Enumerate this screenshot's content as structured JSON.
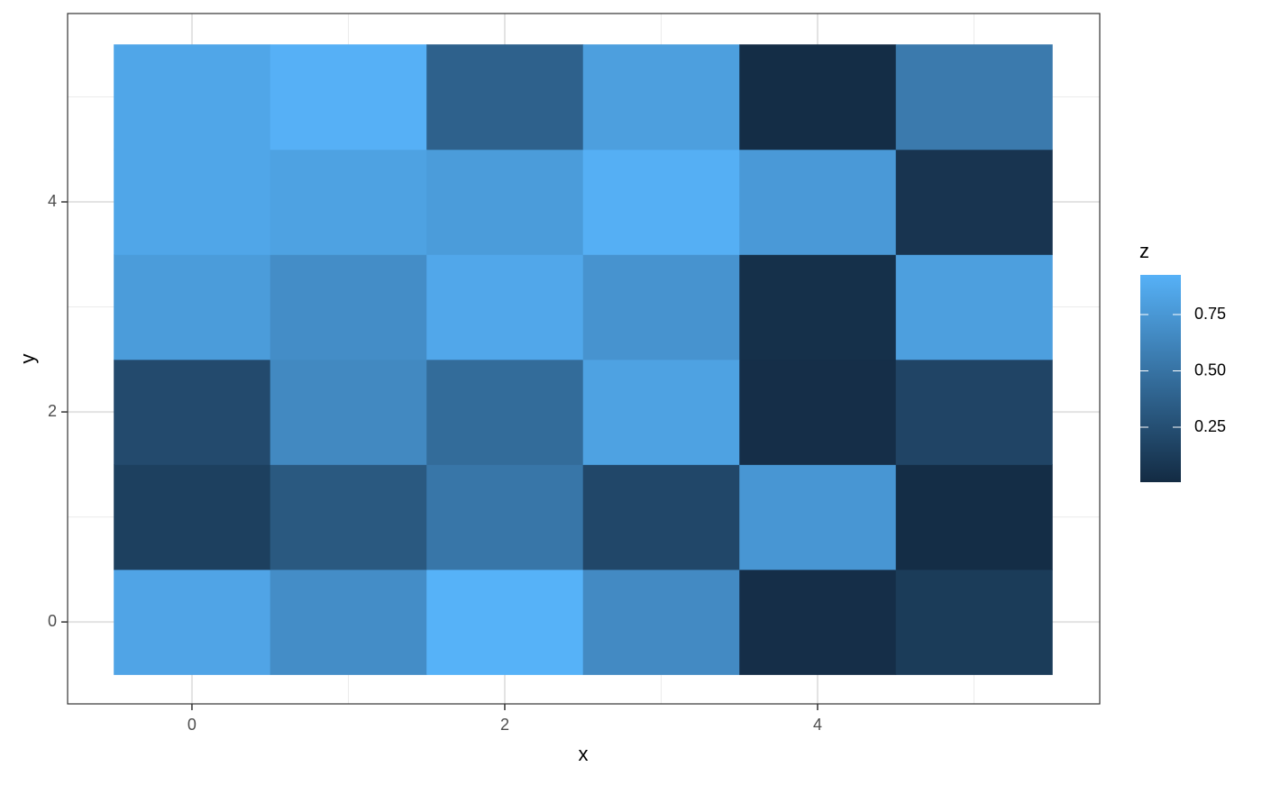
{
  "chart_data": {
    "type": "heatmap",
    "x_label": "x",
    "y_label": "y",
    "legend_title": "z",
    "x": [
      0,
      1,
      2,
      3,
      4,
      5
    ],
    "y": [
      0,
      1,
      2,
      3,
      4,
      5
    ],
    "z": [
      [
        0.84,
        0.68,
        0.93,
        0.66,
        0.03,
        0.12
      ],
      [
        0.15,
        0.32,
        0.52,
        0.2,
        0.74,
        0.02
      ],
      [
        0.22,
        0.65,
        0.45,
        0.82,
        0.03,
        0.18
      ],
      [
        0.78,
        0.68,
        0.86,
        0.72,
        0.04,
        0.8
      ],
      [
        0.85,
        0.82,
        0.78,
        0.91,
        0.76,
        0.07
      ],
      [
        0.85,
        0.92,
        0.38,
        0.8,
        0.02,
        0.55
      ]
    ],
    "colors": [
      "#132B43",
      "#56B1F7"
    ],
    "zlim": [
      0.006,
      0.926
    ],
    "zticks": [
      0.25,
      {
        "value": 0.5,
        "label": "0.50"
      },
      0.75
    ],
    "xlim": [
      -0.795,
      5.804
    ],
    "xticks": [
      0,
      2,
      4
    ],
    "ylim": [
      -0.78,
      5.794
    ],
    "yticks": [
      0,
      2,
      4
    ],
    "grid": true
  }
}
